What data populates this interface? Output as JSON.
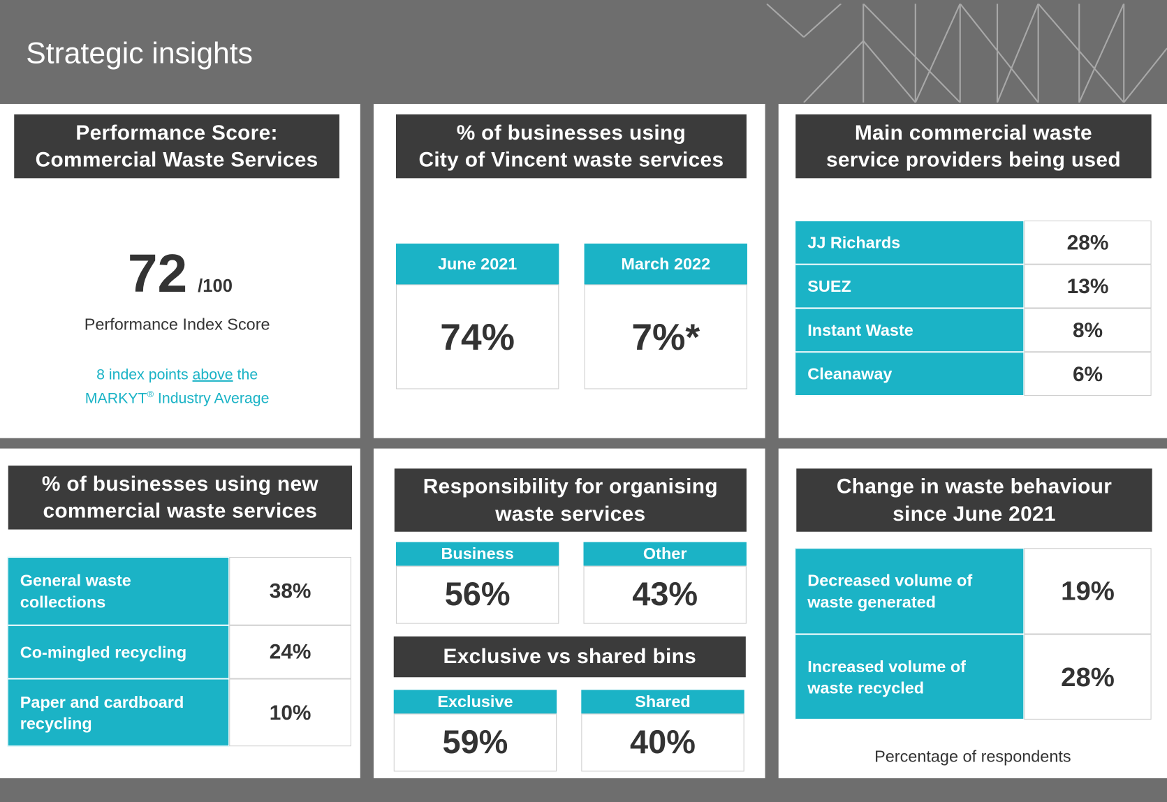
{
  "header": {
    "title": "Strategic insights"
  },
  "panels": [
    {
      "title": [
        "Performance Score:",
        "Commercial Waste Services"
      ],
      "score": "72",
      "out_of": "/100",
      "score_label": "Performance Index Score",
      "note": {
        "before": "8 index points ",
        "emphasis": "above",
        "after": " the",
        "line2": "MARKYT",
        "mark": "®",
        "line2_after": " Industry Average"
      }
    },
    {
      "title": [
        "% of businesses using",
        "City of Vincent waste services"
      ],
      "cards": [
        {
          "label": "June 2021",
          "value": "74%"
        },
        {
          "label": "March 2022",
          "value": "7%*"
        }
      ]
    },
    {
      "title": [
        "Main commercial waste",
        "service providers being used"
      ],
      "rows": [
        {
          "label": [
            "JJ Richards"
          ],
          "value": "28%"
        },
        {
          "label": [
            "SUEZ"
          ],
          "value": "13%"
        },
        {
          "label": [
            "Instant Waste"
          ],
          "value": "8%"
        },
        {
          "label": [
            "Cleanaway"
          ],
          "value": "6%"
        }
      ]
    },
    {
      "title": [
        "% of businesses using new",
        "commercial waste services"
      ],
      "rows": [
        {
          "label": [
            "General waste",
            "collections"
          ],
          "value": "38%"
        },
        {
          "label": [
            "Co-mingled recycling"
          ],
          "value": "24%"
        },
        {
          "label": [
            "Paper and cardboard",
            "recycling"
          ],
          "value": "10%"
        }
      ]
    },
    {
      "title": [
        "Responsibility for organising",
        "waste services"
      ],
      "cards": [
        {
          "label": "Business",
          "value": "56%"
        },
        {
          "label": "Other",
          "value": "43%"
        }
      ],
      "subtitle": "Exclusive vs shared bins",
      "subcards": [
        {
          "label": "Exclusive",
          "value": "59%"
        },
        {
          "label": "Shared",
          "value": "40%"
        }
      ]
    },
    {
      "title": [
        "Change in waste behaviour",
        "since June 2021"
      ],
      "rows": [
        {
          "label": [
            "Decreased volume of",
            "waste generated"
          ],
          "value": "19%"
        },
        {
          "label": [
            "Increased volume of",
            "waste recycled"
          ],
          "value": "28%"
        }
      ],
      "footnote": "Percentage of respondents"
    }
  ]
}
